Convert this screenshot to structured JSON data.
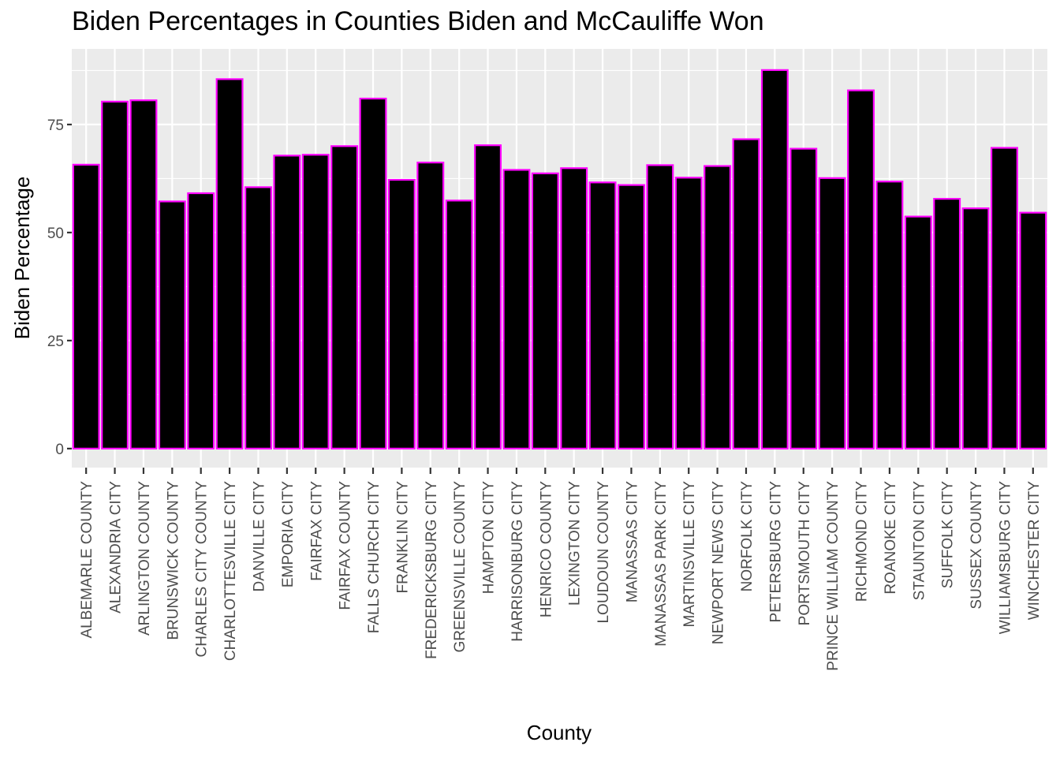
{
  "chart_data": {
    "type": "bar",
    "title": "Biden Percentages in Counties Biden and McCauliffe Won",
    "xlabel": "County",
    "ylabel": "Biden Percentage",
    "ylim": [
      -4.4,
      92.5
    ],
    "yticks": [
      0,
      25,
      50,
      75
    ],
    "grid": true,
    "legend": "none",
    "colors": {
      "panel": "#ebebeb",
      "grid": "#ffffff",
      "bar_fill": "#000000",
      "bar_outline": "#ff00ff",
      "tick_text": "#4d4d4d"
    },
    "categories": [
      "ALBEMARLE COUNTY",
      "ALEXANDRIA CITY",
      "ARLINGTON COUNTY",
      "BRUNSWICK COUNTY",
      "CHARLES CITY COUNTY",
      "CHARLOTTESVILLE CITY",
      "DANVILLE CITY",
      "EMPORIA CITY",
      "FAIRFAX CITY",
      "FAIRFAX COUNTY",
      "FALLS CHURCH CITY",
      "FRANKLIN CITY",
      "FREDERICKSBURG CITY",
      "GREENSVILLE COUNTY",
      "HAMPTON CITY",
      "HARRISONBURG CITY",
      "HENRICO COUNTY",
      "LEXINGTON CITY",
      "LOUDOUN COUNTY",
      "MANASSAS CITY",
      "MANASSAS PARK CITY",
      "MARTINSVILLE CITY",
      "NEWPORT NEWS CITY",
      "NORFOLK CITY",
      "PETERSBURG CITY",
      "PORTSMOUTH CITY",
      "PRINCE WILLIAM COUNTY",
      "RICHMOND CITY",
      "ROANOKE CITY",
      "STAUNTON CITY",
      "SUFFOLK CITY",
      "SUSSEX COUNTY",
      "WILLIAMSBURG CITY",
      "WINCHESTER CITY"
    ],
    "values": [
      65.7,
      80.3,
      80.6,
      57.2,
      59.1,
      85.5,
      60.5,
      67.8,
      68.0,
      70.0,
      81.0,
      62.2,
      66.2,
      57.4,
      70.2,
      64.5,
      63.7,
      64.9,
      61.6,
      61.0,
      65.6,
      62.7,
      65.4,
      71.6,
      87.6,
      69.4,
      62.6,
      82.9,
      61.8,
      53.7,
      57.8,
      55.6,
      69.6,
      54.6
    ]
  }
}
